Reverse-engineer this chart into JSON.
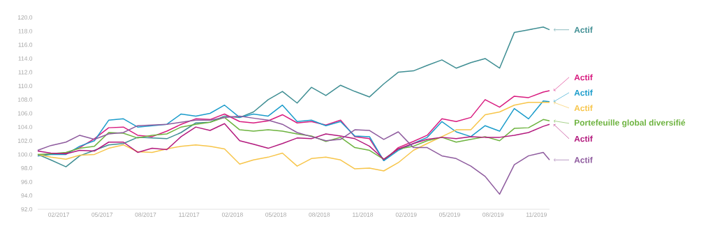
{
  "chart_data": {
    "type": "line",
    "x": [
      "2016-12-18",
      "2017-01-15",
      "2017-02-15",
      "2017-03-15",
      "2017-04-15",
      "2017-05-15",
      "2017-06-15",
      "2017-07-15",
      "2017-08-15",
      "2017-09-15",
      "2017-10-15",
      "2017-11-15",
      "2017-12-15",
      "2018-01-15",
      "2018-02-15",
      "2018-03-15",
      "2018-04-15",
      "2018-05-15",
      "2018-06-15",
      "2018-07-15",
      "2018-08-15",
      "2018-09-15",
      "2018-10-15",
      "2018-11-15",
      "2018-12-15",
      "2019-01-15",
      "2019-02-15",
      "2019-03-15",
      "2019-04-15",
      "2019-05-15",
      "2019-06-15",
      "2019-07-15",
      "2019-08-15",
      "2019-09-15",
      "2019-10-15",
      "2019-11-15",
      "2019-11-28"
    ],
    "series": [
      {
        "name": "Actif",
        "color": "#3f8e93",
        "values": [
          100.0,
          99.2,
          98.2,
          99.8,
          100.6,
          101.4,
          101.6,
          102.5,
          102.4,
          102.3,
          103.2,
          104.6,
          104.7,
          105.6,
          105.4,
          106.2,
          108.0,
          109.2,
          107.5,
          109.8,
          108.6,
          110.1,
          109.2,
          108.4,
          110.3,
          112.0,
          112.2,
          113.0,
          113.8,
          112.6,
          113.4,
          114.0,
          112.6,
          117.8,
          118.2,
          118.6,
          118.2
        ]
      },
      {
        "name": "Actif",
        "color": "#d81b7f",
        "values": [
          99.8,
          100.1,
          100.2,
          101.0,
          102.3,
          103.9,
          104.0,
          102.8,
          102.6,
          103.4,
          104.4,
          105.2,
          105.1,
          105.9,
          104.8,
          104.6,
          104.9,
          105.8,
          104.6,
          104.8,
          104.3,
          105.0,
          102.6,
          102.3,
          99.1,
          101.0,
          101.9,
          102.8,
          105.2,
          104.8,
          105.4,
          108.0,
          106.9,
          108.5,
          108.3,
          109.1,
          109.3
        ]
      },
      {
        "name": "Actif",
        "color": "#1b9ccb",
        "values": [
          99.8,
          100.0,
          100.0,
          101.2,
          102.0,
          105.0,
          105.2,
          104.0,
          104.2,
          104.4,
          105.9,
          105.6,
          106.0,
          107.2,
          105.4,
          105.9,
          105.6,
          107.2,
          104.8,
          105.0,
          104.2,
          104.8,
          102.7,
          102.6,
          99.1,
          100.6,
          101.6,
          102.5,
          104.8,
          103.3,
          102.6,
          104.2,
          103.4,
          106.7,
          105.2,
          107.8,
          107.7
        ]
      },
      {
        "name": "Actif",
        "color": "#f7c54a",
        "values": [
          100.0,
          99.6,
          99.3,
          99.9,
          100.0,
          100.9,
          101.4,
          100.4,
          100.3,
          100.8,
          101.2,
          101.4,
          101.2,
          100.8,
          98.6,
          99.2,
          99.6,
          100.2,
          98.3,
          99.4,
          99.6,
          99.2,
          97.9,
          98.0,
          97.6,
          98.8,
          100.6,
          101.6,
          102.6,
          103.6,
          103.6,
          105.8,
          106.2,
          107.2,
          107.6,
          107.6,
          107.6
        ]
      },
      {
        "name": "Portefeuille global diversifié",
        "color": "#6db33f",
        "values": [
          100.0,
          100.1,
          100.3,
          100.9,
          101.2,
          103.2,
          103.1,
          102.4,
          102.8,
          103.0,
          104.0,
          104.4,
          104.7,
          105.4,
          103.6,
          103.4,
          103.6,
          103.4,
          103.0,
          102.7,
          101.9,
          102.5,
          101.0,
          100.6,
          99.3,
          100.8,
          101.2,
          102.0,
          102.5,
          101.8,
          102.2,
          102.6,
          102.0,
          103.8,
          103.9,
          105.1,
          104.9
        ]
      },
      {
        "name": "Actif",
        "color": "#b3197d",
        "values": [
          100.5,
          100.2,
          100.1,
          100.6,
          100.5,
          101.8,
          101.8,
          100.3,
          100.9,
          100.7,
          102.6,
          104.0,
          103.5,
          104.5,
          102.0,
          101.5,
          100.9,
          101.6,
          102.4,
          102.3,
          103.0,
          102.7,
          102.3,
          101.2,
          99.3,
          100.8,
          101.6,
          102.2,
          102.5,
          102.3,
          102.6,
          102.5,
          102.5,
          102.8,
          103.2,
          104.1,
          104.4
        ]
      },
      {
        "name": "Actif",
        "color": "#8e5b9e",
        "values": [
          100.6,
          101.3,
          101.8,
          102.8,
          102.2,
          103.0,
          103.2,
          104.2,
          104.3,
          104.4,
          104.7,
          105.0,
          105.0,
          105.4,
          105.6,
          105.3,
          105.0,
          104.4,
          103.2,
          102.6,
          102.0,
          102.2,
          103.6,
          103.5,
          102.2,
          103.3,
          101.0,
          101.0,
          99.8,
          99.4,
          98.3,
          96.8,
          94.2,
          98.5,
          99.8,
          100.3,
          99.2
        ]
      }
    ],
    "xticks": [
      {
        "value": "2017-02-01",
        "label": "02/2017"
      },
      {
        "value": "2017-05-01",
        "label": "05/2017"
      },
      {
        "value": "2017-08-01",
        "label": "08/2017"
      },
      {
        "value": "2017-11-01",
        "label": "11/2017"
      },
      {
        "value": "2018-02-01",
        "label": "02/2018"
      },
      {
        "value": "2018-05-01",
        "label": "05/2018"
      },
      {
        "value": "2018-08-01",
        "label": "08/2018"
      },
      {
        "value": "2018-11-01",
        "label": "11/2018"
      },
      {
        "value": "2019-02-01",
        "label": "02/2019"
      },
      {
        "value": "2019-05-01",
        "label": "05/2019"
      },
      {
        "value": "2019-08-01",
        "label": "08/2019"
      },
      {
        "value": "2019-11-01",
        "label": "11/2019"
      }
    ],
    "xlim": [
      "2016-12-18",
      "2019-11-28"
    ],
    "ylim": [
      92,
      120
    ],
    "yticks": [
      {
        "value": 92,
        "label": "92.0"
      },
      {
        "value": 94,
        "label": "94.0"
      },
      {
        "value": 96,
        "label": "96.0"
      },
      {
        "value": 98,
        "label": "98.0"
      },
      {
        "value": 100,
        "label": "100.0"
      },
      {
        "value": 102,
        "label": "102.0"
      },
      {
        "value": 104,
        "label": "104.0"
      },
      {
        "value": 106,
        "label": "106.0"
      },
      {
        "value": 108,
        "label": "108.0"
      },
      {
        "value": 110,
        "label": "110.0"
      },
      {
        "value": 112,
        "label": "112.0"
      },
      {
        "value": 114,
        "label": "114.0"
      },
      {
        "value": 116,
        "label": "116.0"
      },
      {
        "value": 118,
        "label": "118.0"
      },
      {
        "value": 120,
        "label": "120.0"
      }
    ],
    "grid": false,
    "legend": "right"
  }
}
